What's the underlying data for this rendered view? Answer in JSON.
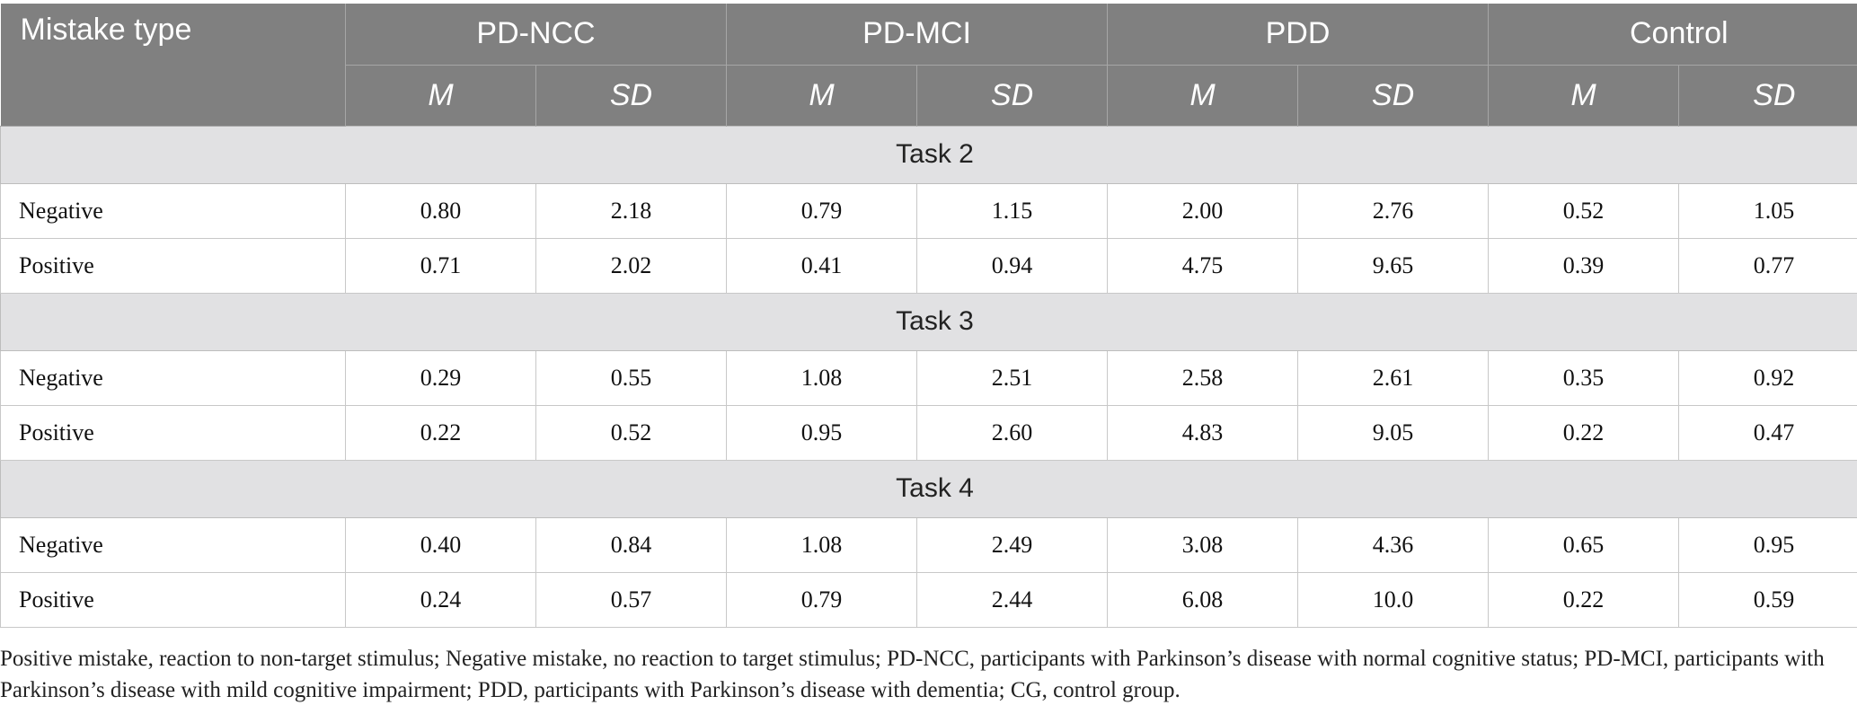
{
  "header": {
    "first_col": "Mistake type",
    "groups": [
      "PD-NCC",
      "PD-MCI",
      "PDD",
      "Control"
    ],
    "sub": [
      "M",
      "SD"
    ]
  },
  "sections": [
    {
      "title": "Task 2",
      "rows": [
        {
          "label": "Negative",
          "values": [
            "0.80",
            "2.18",
            "0.79",
            "1.15",
            "2.00",
            "2.76",
            "0.52",
            "1.05"
          ]
        },
        {
          "label": "Positive",
          "values": [
            "0.71",
            "2.02",
            "0.41",
            "0.94",
            "4.75",
            "9.65",
            "0.39",
            "0.77"
          ]
        }
      ]
    },
    {
      "title": "Task 3",
      "rows": [
        {
          "label": "Negative",
          "values": [
            "0.29",
            "0.55",
            "1.08",
            "2.51",
            "2.58",
            "2.61",
            "0.35",
            "0.92"
          ]
        },
        {
          "label": "Positive",
          "values": [
            "0.22",
            "0.52",
            "0.95",
            "2.60",
            "4.83",
            "9.05",
            "0.22",
            "0.47"
          ]
        }
      ]
    },
    {
      "title": "Task 4",
      "rows": [
        {
          "label": "Negative",
          "values": [
            "0.40",
            "0.84",
            "1.08",
            "2.49",
            "3.08",
            "4.36",
            "0.65",
            "0.95"
          ]
        },
        {
          "label": "Positive",
          "values": [
            "0.24",
            "0.57",
            "0.79",
            "2.44",
            "6.08",
            "10.0",
            "0.22",
            "0.59"
          ]
        }
      ]
    }
  ],
  "footnote": "Positive mistake, reaction to non-target stimulus; Negative mistake, no reaction to target stimulus; PD-NCC, participants with Parkinson’s disease with normal cognitive status; PD-MCI, participants with Parkinson’s disease with mild cognitive impairment; PDD, participants with Parkinson’s disease with dementia; CG, control group.",
  "colors": {
    "header_bg": "#808080",
    "section_bg": "#e1e1e3"
  }
}
